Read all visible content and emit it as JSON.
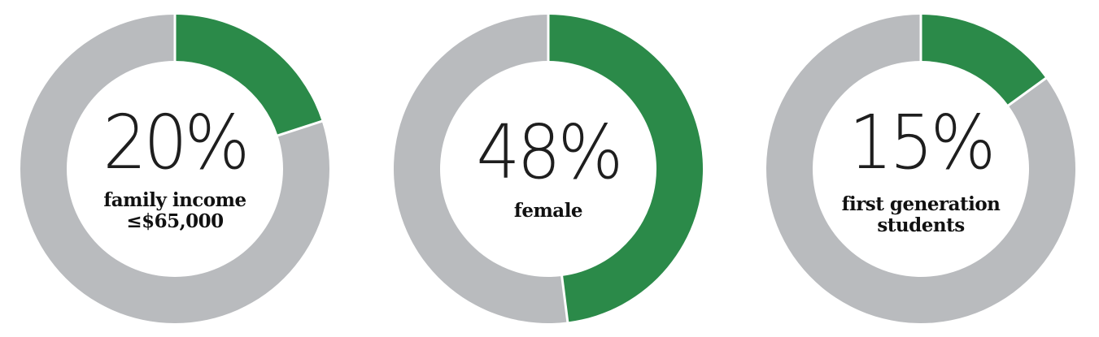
{
  "colors": {
    "highlight": "#2b8a49",
    "remainder": "#b9bbbe",
    "divider": "#ffffff"
  },
  "chart_data": [
    {
      "type": "pie",
      "value": 20,
      "percent_label": "20%",
      "label_lines": [
        "family income",
        "≤$65,000"
      ]
    },
    {
      "type": "pie",
      "value": 48,
      "percent_label": "48%",
      "label_lines": [
        "female"
      ]
    },
    {
      "type": "pie",
      "value": 15,
      "percent_label": "15%",
      "label_lines": [
        "first generation",
        "students"
      ]
    }
  ]
}
